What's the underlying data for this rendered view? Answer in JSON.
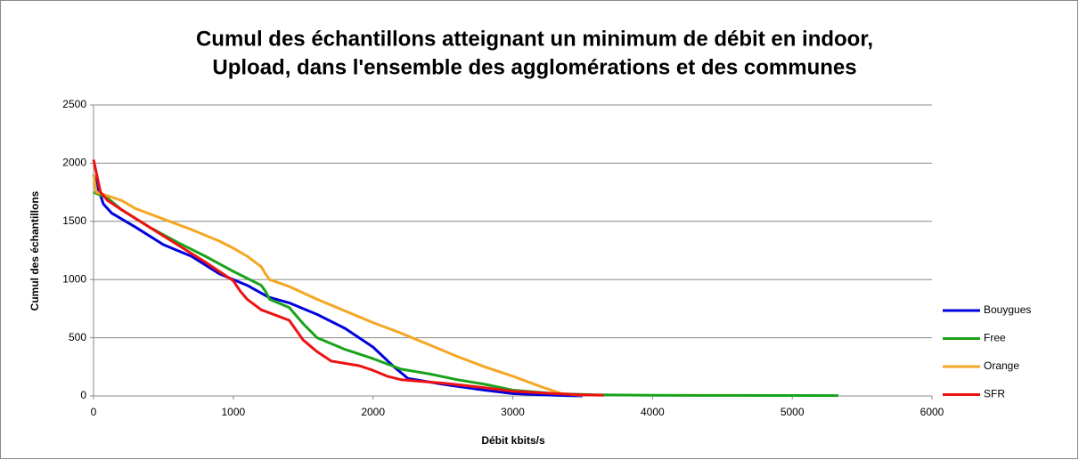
{
  "chart_data": {
    "type": "line",
    "title": [
      "Cumul des échantillons atteignant un minimum de débit en indoor,",
      "Upload,  dans l'ensemble des agglomérations et des communes"
    ],
    "x_label": "Débit kbits/s",
    "y_label": "Cumul des échantillons",
    "xlim": [
      0,
      6000
    ],
    "xticks": [
      0,
      1000,
      2000,
      3000,
      4000,
      5000,
      6000
    ],
    "ylim": [
      0,
      2500
    ],
    "yticks": [
      0,
      500,
      1000,
      1500,
      2000,
      2500
    ],
    "grid": true,
    "legend": "right",
    "series": [
      {
        "name": "Bouygues",
        "color": "#0000dd",
        "x": [
          0,
          70,
          130,
          300,
          500,
          700,
          900,
          1100,
          1250,
          1400,
          1600,
          1800,
          2000,
          2150,
          2250,
          2500,
          2800,
          3000,
          3300,
          3500
        ],
        "values": [
          1900,
          1650,
          1570,
          1450,
          1300,
          1200,
          1050,
          950,
          850,
          800,
          700,
          580,
          420,
          250,
          150,
          100,
          50,
          20,
          5,
          0
        ]
      },
      {
        "name": "Free",
        "color": "#1aa31a",
        "x": [
          0,
          100,
          200,
          400,
          600,
          800,
          1000,
          1200,
          1230,
          1260,
          1400,
          1500,
          1600,
          1800,
          2000,
          2200,
          2400,
          2600,
          2800,
          3000,
          3300,
          3600,
          4000,
          5330
        ],
        "values": [
          1750,
          1700,
          1600,
          1450,
          1320,
          1200,
          1070,
          950,
          900,
          830,
          760,
          620,
          500,
          400,
          320,
          230,
          190,
          140,
          100,
          50,
          20,
          10,
          5,
          3
        ]
      },
      {
        "name": "Orange",
        "color": "#f5a623",
        "x": [
          0,
          20,
          100,
          200,
          300,
          500,
          700,
          900,
          1000,
          1100,
          1200,
          1230,
          1260,
          1400,
          1600,
          1800,
          2000,
          2200,
          2400,
          2600,
          2800,
          3000,
          3200,
          3350,
          3500
        ],
        "values": [
          1900,
          1750,
          1720,
          1680,
          1610,
          1520,
          1430,
          1330,
          1270,
          1200,
          1110,
          1050,
          1000,
          940,
          830,
          730,
          630,
          540,
          440,
          340,
          250,
          170,
          80,
          20,
          5
        ]
      },
      {
        "name": "SFR",
        "color": "#ee1111",
        "x": [
          0,
          50,
          100,
          200,
          400,
          600,
          800,
          1000,
          1050,
          1100,
          1200,
          1400,
          1500,
          1600,
          1700,
          1900,
          2000,
          2100,
          2200,
          2500,
          2800,
          3000,
          3300,
          3500,
          3650
        ],
        "values": [
          2030,
          1750,
          1680,
          1600,
          1450,
          1300,
          1150,
          990,
          900,
          830,
          740,
          650,
          480,
          380,
          300,
          260,
          220,
          170,
          140,
          110,
          70,
          40,
          20,
          10,
          5
        ]
      }
    ]
  }
}
